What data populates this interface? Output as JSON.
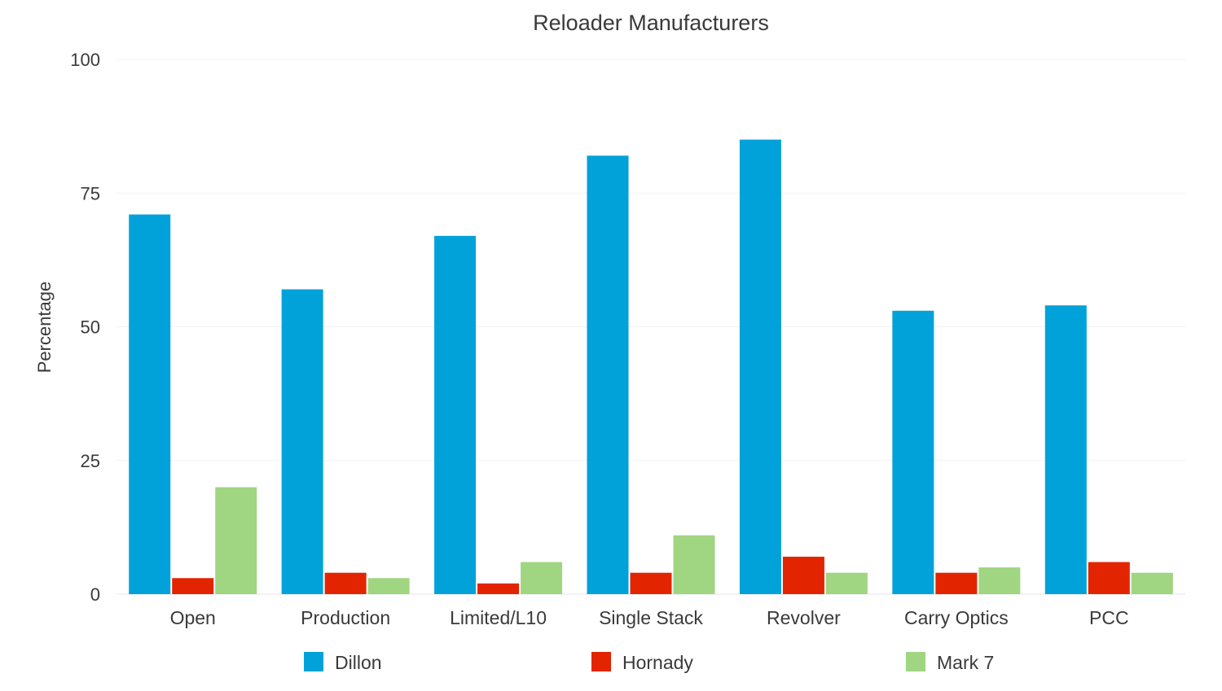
{
  "chart_data": {
    "type": "bar",
    "title": "Reloader Manufacturers",
    "xlabel": "",
    "ylabel": "Percentage",
    "ylim": [
      0,
      100
    ],
    "yticks": [
      0,
      25,
      50,
      75,
      100
    ],
    "grid": true,
    "legend_position": "bottom",
    "categories": [
      "Open",
      "Production",
      "Limited/L10",
      "Single Stack",
      "Revolver",
      "Carry Optics",
      "PCC"
    ],
    "series": [
      {
        "name": "Dillon",
        "color": "#00a2d9",
        "values": [
          71,
          57,
          67,
          82,
          85,
          53,
          54
        ]
      },
      {
        "name": "Hornady",
        "color": "#e32400",
        "values": [
          3,
          4,
          2,
          4,
          7,
          4,
          6
        ]
      },
      {
        "name": "Mark 7",
        "color": "#a0d581",
        "values": [
          20,
          3,
          6,
          11,
          4,
          5,
          4
        ]
      }
    ]
  }
}
